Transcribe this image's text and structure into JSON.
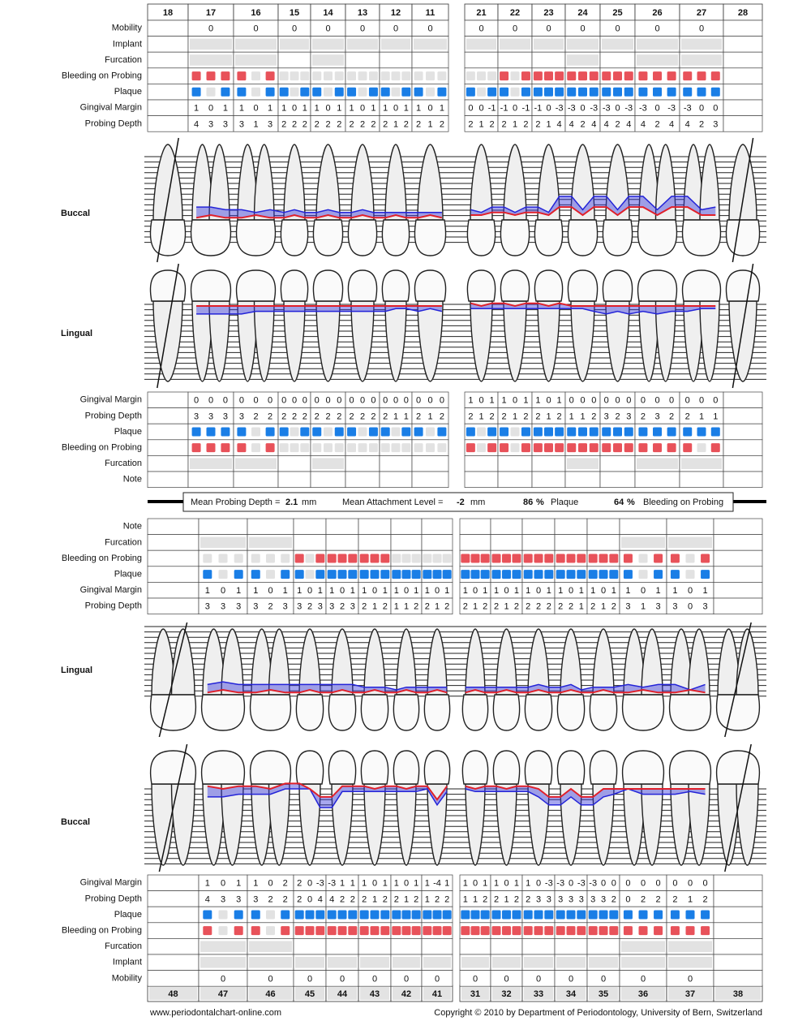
{
  "labels": {
    "mobility": "Mobility",
    "implant": "Implant",
    "furcation": "Furcation",
    "bleeding": "Bleeding on Probing",
    "plaque": "Plaque",
    "gm": "Gingival Margin",
    "pd": "Probing Depth",
    "note": "Note",
    "buccal": "Buccal",
    "lingual": "Lingual"
  },
  "upper": {
    "teeth": [
      "18",
      "17",
      "16",
      "15",
      "14",
      "13",
      "12",
      "11",
      "21",
      "22",
      "23",
      "24",
      "25",
      "26",
      "27",
      "28"
    ],
    "buccal": {
      "mobility": [
        null,
        0,
        0,
        0,
        0,
        0,
        0,
        0,
        0,
        0,
        0,
        0,
        0,
        0,
        0,
        null
      ],
      "bleeding": [
        null,
        [
          1,
          1,
          1
        ],
        [
          1,
          0,
          1
        ],
        [
          0,
          0,
          0
        ],
        [
          0,
          0,
          0
        ],
        [
          0,
          0,
          0
        ],
        [
          0,
          0,
          0
        ],
        [
          0,
          0,
          0
        ],
        [
          0,
          0,
          0
        ],
        [
          1,
          0,
          1
        ],
        [
          1,
          1,
          1
        ],
        [
          1,
          1,
          1
        ],
        [
          1,
          1,
          1
        ],
        [
          1,
          1,
          1
        ],
        [
          1,
          1,
          1
        ],
        null
      ],
      "plaque": [
        null,
        [
          1,
          0,
          1
        ],
        [
          1,
          0,
          1
        ],
        [
          1,
          0,
          1
        ],
        [
          1,
          0,
          1
        ],
        [
          1,
          0,
          1
        ],
        [
          1,
          0,
          1
        ],
        [
          1,
          0,
          1
        ],
        [
          1,
          0,
          1
        ],
        [
          1,
          0,
          1
        ],
        [
          1,
          1,
          1
        ],
        [
          1,
          1,
          1
        ],
        [
          1,
          1,
          1
        ],
        [
          1,
          1,
          1
        ],
        [
          1,
          1,
          1
        ],
        null
      ],
      "gm": [
        null,
        [
          1,
          0,
          1
        ],
        [
          1,
          0,
          1
        ],
        [
          1,
          0,
          1
        ],
        [
          1,
          0,
          1
        ],
        [
          1,
          0,
          1
        ],
        [
          1,
          0,
          1
        ],
        [
          1,
          0,
          1
        ],
        [
          0,
          0,
          -1
        ],
        [
          -1,
          0,
          -1
        ],
        [
          -1,
          0,
          -3
        ],
        [
          -3,
          0,
          -3
        ],
        [
          -3,
          0,
          -3
        ],
        [
          -3,
          0,
          -3
        ],
        [
          -3,
          0,
          0
        ],
        null
      ],
      "pd": [
        null,
        [
          4,
          3,
          3
        ],
        [
          3,
          1,
          3
        ],
        [
          2,
          2,
          2
        ],
        [
          2,
          2,
          2
        ],
        [
          2,
          2,
          2
        ],
        [
          2,
          1,
          2
        ],
        [
          2,
          1,
          2
        ],
        [
          2,
          1,
          2
        ],
        [
          2,
          1,
          2
        ],
        [
          2,
          1,
          4
        ],
        [
          4,
          2,
          4
        ],
        [
          4,
          2,
          4
        ],
        [
          4,
          2,
          4
        ],
        [
          4,
          2,
          3
        ],
        null
      ]
    },
    "lingual": {
      "gm": [
        null,
        [
          0,
          0,
          0
        ],
        [
          0,
          0,
          0
        ],
        [
          0,
          0,
          0
        ],
        [
          0,
          0,
          0
        ],
        [
          0,
          0,
          0
        ],
        [
          0,
          0,
          0
        ],
        [
          0,
          0,
          0
        ],
        [
          1,
          0,
          1
        ],
        [
          1,
          0,
          1
        ],
        [
          1,
          0,
          1
        ],
        [
          0,
          0,
          0
        ],
        [
          0,
          0,
          0
        ],
        [
          0,
          0,
          0
        ],
        [
          0,
          0,
          0
        ],
        null
      ],
      "pd": [
        null,
        [
          3,
          3,
          3
        ],
        [
          3,
          2,
          2
        ],
        [
          2,
          2,
          2
        ],
        [
          2,
          2,
          2
        ],
        [
          2,
          2,
          2
        ],
        [
          2,
          1,
          1
        ],
        [
          2,
          1,
          2
        ],
        [
          2,
          1,
          2
        ],
        [
          2,
          1,
          2
        ],
        [
          2,
          1,
          2
        ],
        [
          1,
          1,
          2
        ],
        [
          3,
          2,
          3
        ],
        [
          2,
          3,
          2
        ],
        [
          2,
          1,
          1
        ],
        null
      ],
      "plaque": [
        null,
        [
          1,
          1,
          1
        ],
        [
          1,
          0,
          1
        ],
        [
          1,
          0,
          1
        ],
        [
          1,
          0,
          1
        ],
        [
          1,
          0,
          1
        ],
        [
          1,
          0,
          1
        ],
        [
          1,
          0,
          1
        ],
        [
          1,
          0,
          1
        ],
        [
          1,
          0,
          1
        ],
        [
          1,
          1,
          1
        ],
        [
          1,
          1,
          1
        ],
        [
          1,
          1,
          1
        ],
        [
          1,
          1,
          1
        ],
        [
          1,
          1,
          1
        ],
        null
      ],
      "bleeding": [
        null,
        [
          1,
          1,
          1
        ],
        [
          1,
          0,
          1
        ],
        [
          0,
          0,
          0
        ],
        [
          0,
          0,
          0
        ],
        [
          0,
          0,
          0
        ],
        [
          0,
          0,
          0
        ],
        [
          0,
          0,
          0
        ],
        [
          1,
          0,
          1
        ],
        [
          1,
          0,
          1
        ],
        [
          1,
          1,
          1
        ],
        [
          1,
          1,
          1
        ],
        [
          1,
          1,
          1
        ],
        [
          1,
          1,
          1
        ],
        [
          1,
          0,
          1
        ],
        null
      ]
    }
  },
  "summary": {
    "mpd_label": "Mean Probing Depth =",
    "mpd": 2.1,
    "unit": "mm",
    "mal_label": "Mean Attachment Level =",
    "mal": -2,
    "plaque": 86,
    "percent": "%",
    "plaque_label": "Plaque",
    "bop": 64,
    "bop_label": "Bleeding on Probing"
  },
  "lower": {
    "teeth": [
      "48",
      "47",
      "46",
      "45",
      "44",
      "43",
      "42",
      "41",
      "31",
      "32",
      "33",
      "34",
      "35",
      "36",
      "37",
      "38"
    ],
    "lingual": {
      "bleeding": [
        null,
        [
          0,
          0,
          0
        ],
        [
          0,
          0,
          0
        ],
        [
          1,
          0,
          1
        ],
        [
          1,
          1,
          1
        ],
        [
          1,
          1,
          1
        ],
        [
          0,
          0,
          0
        ],
        [
          0,
          0,
          0
        ],
        [
          1,
          1,
          1
        ],
        [
          1,
          1,
          1
        ],
        [
          1,
          1,
          1
        ],
        [
          1,
          1,
          1
        ],
        [
          1,
          1,
          1
        ],
        [
          1,
          0,
          1
        ],
        [
          1,
          0,
          1
        ],
        null
      ],
      "plaque": [
        null,
        [
          1,
          0,
          1
        ],
        [
          1,
          0,
          1
        ],
        [
          1,
          0,
          1
        ],
        [
          1,
          1,
          1
        ],
        [
          1,
          1,
          1
        ],
        [
          1,
          1,
          1
        ],
        [
          1,
          1,
          1
        ],
        [
          1,
          1,
          1
        ],
        [
          1,
          1,
          1
        ],
        [
          1,
          1,
          1
        ],
        [
          1,
          1,
          1
        ],
        [
          1,
          1,
          1
        ],
        [
          1,
          0,
          1
        ],
        [
          1,
          0,
          1
        ],
        null
      ],
      "gm": [
        null,
        [
          1,
          0,
          1
        ],
        [
          1,
          0,
          1
        ],
        [
          1,
          0,
          1
        ],
        [
          1,
          0,
          1
        ],
        [
          1,
          0,
          1
        ],
        [
          1,
          0,
          1
        ],
        [
          1,
          0,
          1
        ],
        [
          1,
          0,
          1
        ],
        [
          1,
          0,
          1
        ],
        [
          1,
          0,
          1
        ],
        [
          1,
          0,
          1
        ],
        [
          1,
          0,
          1
        ],
        [
          1,
          0,
          1
        ],
        [
          1,
          0,
          1
        ],
        null
      ],
      "pd": [
        null,
        [
          3,
          3,
          3
        ],
        [
          3,
          2,
          3
        ],
        [
          3,
          2,
          3
        ],
        [
          3,
          2,
          3
        ],
        [
          2,
          1,
          2
        ],
        [
          1,
          1,
          2
        ],
        [
          2,
          1,
          2
        ],
        [
          2,
          1,
          2
        ],
        [
          2,
          1,
          2
        ],
        [
          2,
          2,
          2
        ],
        [
          2,
          2,
          1
        ],
        [
          2,
          1,
          2
        ],
        [
          3,
          1,
          3
        ],
        [
          3,
          0,
          3
        ],
        null
      ]
    },
    "buccal": {
      "gm": [
        null,
        [
          1,
          0,
          1
        ],
        [
          1,
          0,
          2
        ],
        [
          2,
          0,
          -3
        ],
        [
          -3,
          1,
          1
        ],
        [
          1,
          0,
          1
        ],
        [
          1,
          0,
          1
        ],
        [
          1,
          -4,
          1
        ],
        [
          1,
          0,
          1
        ],
        [
          1,
          0,
          1
        ],
        [
          1,
          0,
          -3
        ],
        [
          -3,
          0,
          -3
        ],
        [
          -3,
          0,
          0
        ],
        [
          0,
          0,
          0
        ],
        [
          0,
          0,
          0
        ],
        null
      ],
      "pd": [
        null,
        [
          4,
          3,
          3
        ],
        [
          3,
          2,
          2
        ],
        [
          2,
          0,
          4
        ],
        [
          4,
          2,
          2
        ],
        [
          2,
          1,
          2
        ],
        [
          2,
          1,
          2
        ],
        [
          1,
          2,
          2
        ],
        [
          1,
          1,
          2
        ],
        [
          2,
          1,
          2
        ],
        [
          2,
          3,
          3
        ],
        [
          3,
          3,
          3
        ],
        [
          3,
          3,
          2
        ],
        [
          0,
          2,
          2
        ],
        [
          2,
          1,
          2
        ],
        null
      ],
      "plaque": [
        null,
        [
          1,
          0,
          1
        ],
        [
          1,
          0,
          1
        ],
        [
          1,
          1,
          1
        ],
        [
          1,
          1,
          1
        ],
        [
          1,
          1,
          1
        ],
        [
          1,
          1,
          1
        ],
        [
          1,
          1,
          1
        ],
        [
          1,
          1,
          1
        ],
        [
          1,
          1,
          1
        ],
        [
          1,
          1,
          1
        ],
        [
          1,
          1,
          1
        ],
        [
          1,
          1,
          1
        ],
        [
          1,
          1,
          1
        ],
        [
          1,
          1,
          1
        ],
        null
      ],
      "bleeding": [
        null,
        [
          1,
          0,
          1
        ],
        [
          1,
          0,
          1
        ],
        [
          1,
          1,
          1
        ],
        [
          1,
          1,
          1
        ],
        [
          1,
          1,
          1
        ],
        [
          1,
          1,
          1
        ],
        [
          1,
          1,
          1
        ],
        [
          1,
          1,
          1
        ],
        [
          1,
          1,
          1
        ],
        [
          1,
          1,
          1
        ],
        [
          1,
          1,
          1
        ],
        [
          1,
          1,
          1
        ],
        [
          1,
          1,
          1
        ],
        [
          1,
          1,
          1
        ],
        null
      ],
      "mobility": [
        null,
        0,
        0,
        0,
        0,
        0,
        0,
        0,
        0,
        0,
        0,
        0,
        0,
        0,
        0,
        null
      ]
    }
  },
  "footer": {
    "left": "www.periodontalchart-online.com",
    "right": "Copyright © 2010 by Department of Periodontology, University of Bern, Switzerland"
  }
}
